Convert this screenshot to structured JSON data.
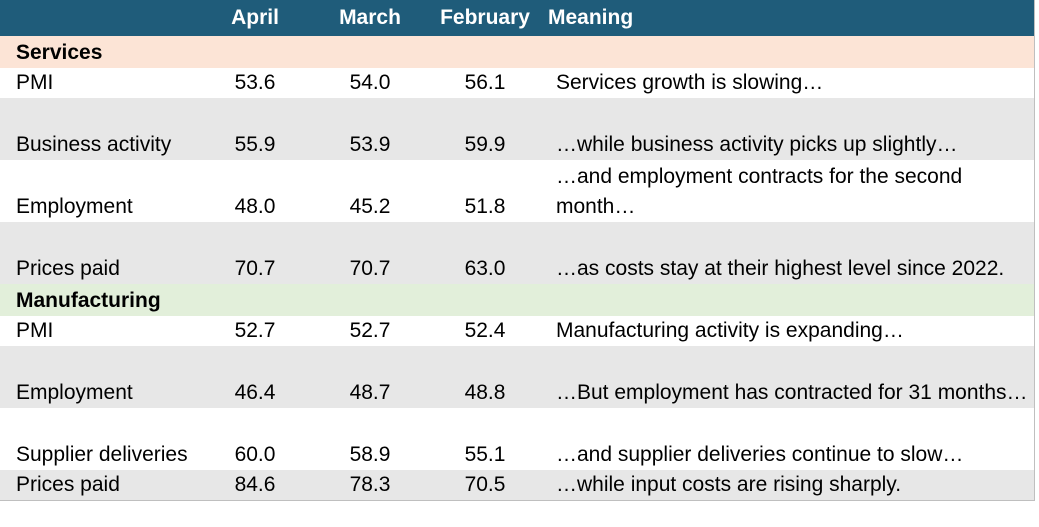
{
  "header": {
    "col0": "",
    "col1": "April",
    "col2": "March",
    "col3": "February",
    "col4": "Meaning"
  },
  "sections": [
    {
      "title": "Services",
      "rows": [
        {
          "label": "PMI",
          "april": "53.6",
          "march": "54.0",
          "february": "56.1",
          "meaning": "Services growth is slowing…"
        },
        {
          "label": "Business activity",
          "april": "55.9",
          "march": "53.9",
          "february": "59.9",
          "meaning": "…while business activity picks up slightly…"
        },
        {
          "label": "Employment",
          "april": "48.0",
          "march": "45.2",
          "february": "51.8",
          "meaning": "…and employment contracts for the second month…"
        },
        {
          "label": "Prices paid",
          "april": "70.7",
          "march": "70.7",
          "february": "63.0",
          "meaning": "…as costs stay at their highest level since 2022."
        }
      ]
    },
    {
      "title": "Manufacturing",
      "rows": [
        {
          "label": "PMI",
          "april": "52.7",
          "march": "52.7",
          "february": "52.4",
          "meaning": "Manufacturing activity is expanding…"
        },
        {
          "label": "Employment",
          "april": "46.4",
          "march": "48.7",
          "february": "48.8",
          "meaning": "…But employment has contracted for 31 months…"
        },
        {
          "label": "Supplier deliveries",
          "april": "60.0",
          "march": "58.9",
          "february": "55.1",
          "meaning": "…and supplier deliveries continue to slow…"
        },
        {
          "label": "Prices paid",
          "april": "84.6",
          "march": "78.3",
          "february": "70.5",
          "meaning": "…while input costs are rising sharply."
        }
      ]
    }
  ],
  "colors": {
    "header_bg": "#1f5c7a",
    "services_bg": "#fce4d6",
    "manufacturing_bg": "#e2efda",
    "stripe_gray": "#e7e7e7"
  }
}
